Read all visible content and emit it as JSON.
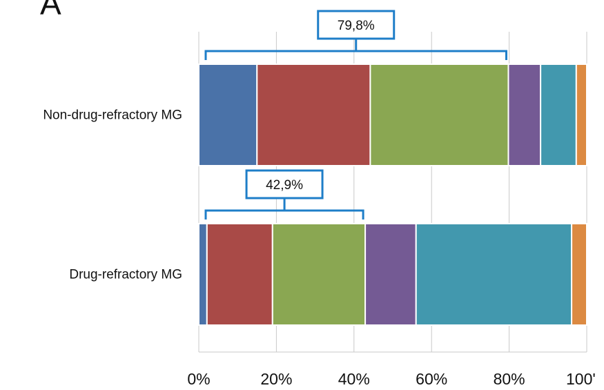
{
  "panel_label": "A",
  "chart_data": {
    "type": "bar",
    "orientation": "horizontal",
    "stacked": true,
    "categories": [
      "Non-drug-refractory MG",
      "Drug-refractory MG"
    ],
    "series": [
      {
        "color": "#4a72a8",
        "values": [
          15.0,
          2.1
        ]
      },
      {
        "color": "#a94a47",
        "values": [
          29.2,
          16.9
        ]
      },
      {
        "color": "#8aa752",
        "values": [
          35.6,
          23.9
        ]
      },
      {
        "color": "#745a94",
        "values": [
          8.3,
          13.1
        ]
      },
      {
        "color": "#4298ae",
        "values": [
          9.2,
          40.1
        ]
      },
      {
        "color": "#dc8a42",
        "values": [
          2.7,
          3.9
        ]
      }
    ],
    "x_ticks": [
      "0%",
      "20%",
      "40%",
      "60%",
      "80%",
      "100'"
    ],
    "xlim": [
      0,
      100
    ],
    "grid": true,
    "annotations": [
      {
        "category": "Non-drug-refractory MG",
        "text": "79,8%",
        "from": 0,
        "to": 79.8
      },
      {
        "category": "Drug-refractory MG",
        "text": "42,9%",
        "from": 0,
        "to": 42.9
      }
    ],
    "bracket_color": "#1e7ec8"
  }
}
